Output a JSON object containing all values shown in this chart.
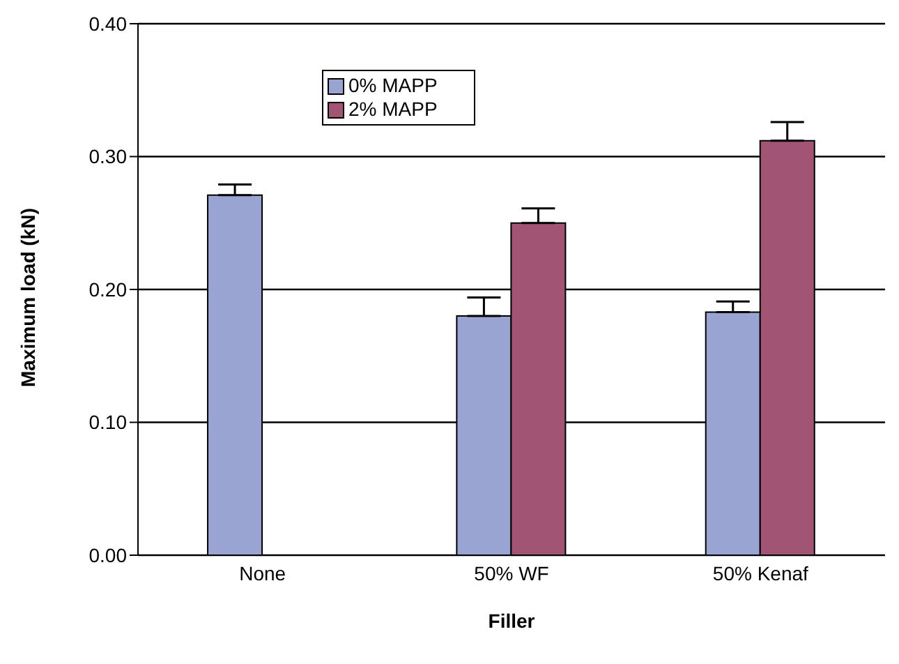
{
  "chart_data": {
    "type": "bar",
    "xlabel": "Filler",
    "ylabel": "Maximum load (kN)",
    "categories": [
      "None",
      "50% WF",
      "50% Kenaf"
    ],
    "series": [
      {
        "name": "0% MAPP",
        "color": "#99a4d2",
        "values": [
          0.271,
          0.18,
          0.183
        ],
        "errors": [
          [
            0.271,
            0.279
          ],
          [
            0.18,
            0.194
          ],
          [
            0.183,
            0.191
          ]
        ]
      },
      {
        "name": "2% MAPP",
        "color": "#a25474",
        "values": [
          0,
          0.25,
          0.312
        ],
        "errors": [
          null,
          [
            0.25,
            0.261
          ],
          [
            0.312,
            0.326
          ]
        ]
      }
    ],
    "ylim": [
      0,
      0.4
    ],
    "yticks": [
      {
        "value": 0,
        "label": "0.00"
      },
      {
        "value": 0.1,
        "label": "0.10"
      },
      {
        "value": 0.2,
        "label": "0.20"
      },
      {
        "value": 0.3,
        "label": "0.30"
      },
      {
        "value": 0.4,
        "label": "0.40"
      }
    ],
    "grid": "y",
    "legend": "top left"
  }
}
